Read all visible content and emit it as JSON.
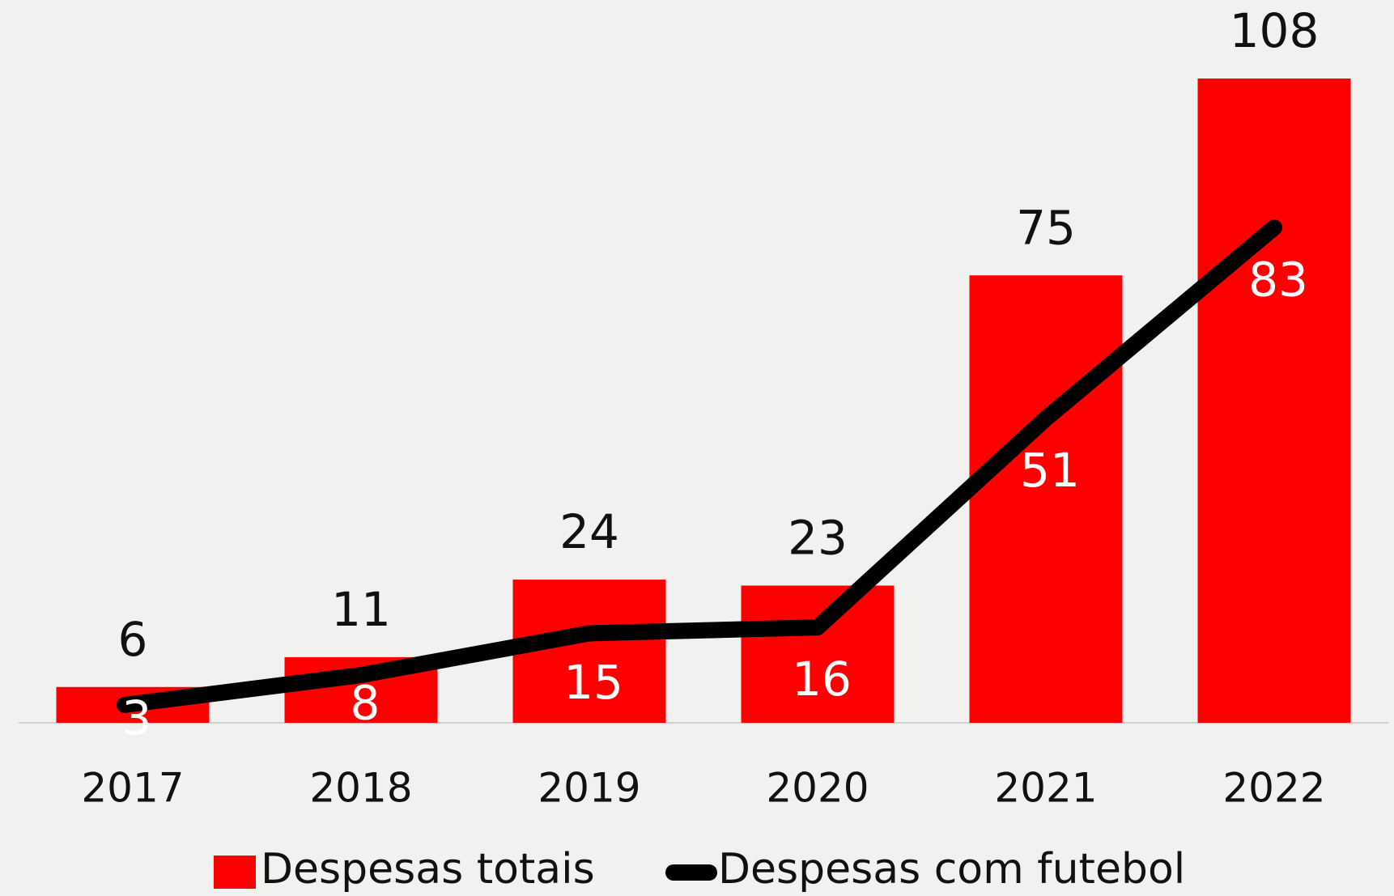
{
  "chart_data": {
    "type": "bar_line",
    "categories": [
      "2017",
      "2018",
      "2019",
      "2020",
      "2021",
      "2022"
    ],
    "series": [
      {
        "name": "Despesas totais",
        "color": "#ff0000",
        "type": "bar",
        "values": [
          6,
          11,
          24,
          23,
          75,
          108
        ]
      },
      {
        "name": "Despesas com futebol",
        "color": "#000000",
        "type": "line",
        "values": [
          3,
          8,
          15,
          16,
          51,
          83
        ]
      }
    ]
  }
}
